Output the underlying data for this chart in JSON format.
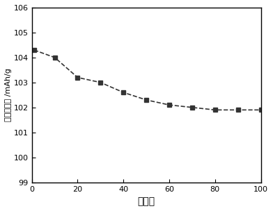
{
  "x": [
    1,
    10,
    20,
    30,
    40,
    50,
    60,
    70,
    80,
    90,
    100
  ],
  "y": [
    104.3,
    104.0,
    103.2,
    103.0,
    102.6,
    102.3,
    102.1,
    102.0,
    101.9,
    101.9,
    101.9
  ],
  "xlabel": "循环数",
  "ylabel": "放电比容量 /mAh/g",
  "xlim": [
    0,
    100
  ],
  "ylim": [
    99,
    106
  ],
  "xticks": [
    0,
    20,
    40,
    60,
    80,
    100
  ],
  "yticks": [
    99,
    100,
    101,
    102,
    103,
    104,
    105,
    106
  ],
  "line_color": "#333333",
  "marker": "s",
  "marker_color": "#333333",
  "marker_size": 5,
  "line_width": 1.2,
  "background_color": "#ffffff"
}
